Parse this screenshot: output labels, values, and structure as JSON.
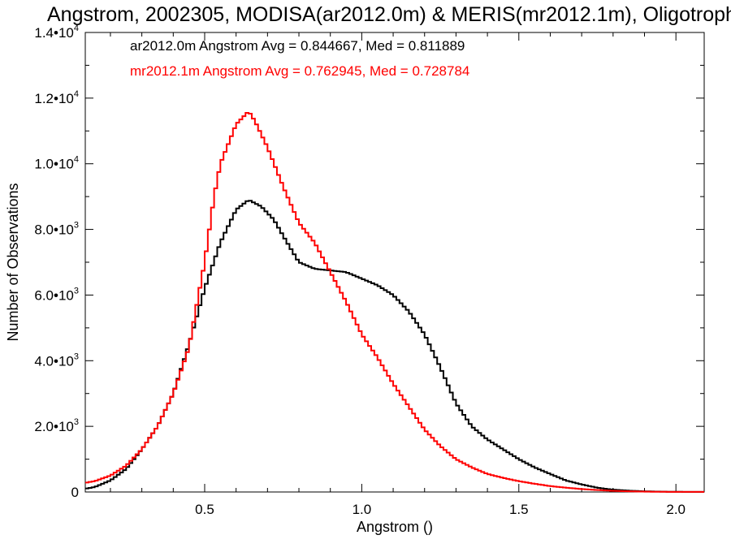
{
  "chart_data": {
    "type": "line",
    "style": "step-histogram",
    "title": "Angstrom, 2002305, MODISA(ar2012.0m) & MERIS(mr2012.1m), Oligotroph",
    "xlabel": "Angstrom ()",
    "ylabel": "Number of Observations",
    "xlim": [
      0.12,
      2.09
    ],
    "ylim": [
      0,
      14000
    ],
    "x_ticks": [
      {
        "value": 0.5,
        "label": "0.5"
      },
      {
        "value": 1.0,
        "label": "1.0"
      },
      {
        "value": 1.5,
        "label": "1.5"
      },
      {
        "value": 2.0,
        "label": "2.0"
      }
    ],
    "y_ticks": [
      {
        "value": 0,
        "mant": "0",
        "exp": ""
      },
      {
        "value": 2000,
        "mant": "2.0•10",
        "exp": "3"
      },
      {
        "value": 4000,
        "mant": "4.0•10",
        "exp": "3"
      },
      {
        "value": 6000,
        "mant": "6.0•10",
        "exp": "3"
      },
      {
        "value": 8000,
        "mant": "8.0•10",
        "exp": "3"
      },
      {
        "value": 10000,
        "mant": "1.0•10",
        "exp": "4"
      },
      {
        "value": 12000,
        "mant": "1.2•10",
        "exp": "4"
      },
      {
        "value": 14000,
        "mant": "1.4•10",
        "exp": "4"
      }
    ],
    "legend_placement": "top-left",
    "series": [
      {
        "name": "ar2012.0m",
        "color": "#000000",
        "legend": "ar2012.0m Angstrom Avg = 0.844667, Med = 0.811889",
        "points": [
          [
            0.12,
            100
          ],
          [
            0.15,
            150
          ],
          [
            0.2,
            350
          ],
          [
            0.25,
            700
          ],
          [
            0.3,
            1300
          ],
          [
            0.35,
            2000
          ],
          [
            0.4,
            3000
          ],
          [
            0.45,
            4500
          ],
          [
            0.5,
            6200
          ],
          [
            0.55,
            7600
          ],
          [
            0.6,
            8600
          ],
          [
            0.64,
            8900
          ],
          [
            0.68,
            8700
          ],
          [
            0.72,
            8300
          ],
          [
            0.75,
            7800
          ],
          [
            0.8,
            7000
          ],
          [
            0.85,
            6800
          ],
          [
            0.9,
            6750
          ],
          [
            0.95,
            6700
          ],
          [
            1.0,
            6500
          ],
          [
            1.05,
            6300
          ],
          [
            1.1,
            6000
          ],
          [
            1.15,
            5500
          ],
          [
            1.2,
            4800
          ],
          [
            1.25,
            3800
          ],
          [
            1.3,
            2700
          ],
          [
            1.35,
            2000
          ],
          [
            1.4,
            1600
          ],
          [
            1.45,
            1300
          ],
          [
            1.5,
            1000
          ],
          [
            1.55,
            750
          ],
          [
            1.6,
            550
          ],
          [
            1.65,
            350
          ],
          [
            1.7,
            230
          ],
          [
            1.75,
            130
          ],
          [
            1.8,
            70
          ],
          [
            1.85,
            40
          ],
          [
            1.9,
            20
          ],
          [
            1.95,
            10
          ],
          [
            2.0,
            5
          ],
          [
            2.09,
            3
          ]
        ]
      },
      {
        "name": "mr2012.1m",
        "color": "#ff0000",
        "legend": "mr2012.1m Angstrom Avg = 0.762945, Med = 0.728784",
        "points": [
          [
            0.12,
            280
          ],
          [
            0.15,
            330
          ],
          [
            0.2,
            500
          ],
          [
            0.25,
            800
          ],
          [
            0.3,
            1300
          ],
          [
            0.35,
            2000
          ],
          [
            0.4,
            3000
          ],
          [
            0.45,
            4400
          ],
          [
            0.5,
            7000
          ],
          [
            0.53,
            9000
          ],
          [
            0.55,
            10000
          ],
          [
            0.6,
            11200
          ],
          [
            0.64,
            11600
          ],
          [
            0.66,
            11300
          ],
          [
            0.7,
            10500
          ],
          [
            0.75,
            9300
          ],
          [
            0.8,
            8200
          ],
          [
            0.85,
            7600
          ],
          [
            0.9,
            6700
          ],
          [
            0.95,
            5800
          ],
          [
            1.0,
            4800
          ],
          [
            1.05,
            4100
          ],
          [
            1.1,
            3300
          ],
          [
            1.15,
            2600
          ],
          [
            1.2,
            1900
          ],
          [
            1.25,
            1400
          ],
          [
            1.3,
            1000
          ],
          [
            1.35,
            750
          ],
          [
            1.4,
            550
          ],
          [
            1.45,
            430
          ],
          [
            1.5,
            330
          ],
          [
            1.55,
            250
          ],
          [
            1.6,
            180
          ],
          [
            1.65,
            130
          ],
          [
            1.7,
            90
          ],
          [
            1.75,
            60
          ],
          [
            1.8,
            35
          ],
          [
            1.85,
            20
          ],
          [
            1.9,
            10
          ],
          [
            1.95,
            5
          ],
          [
            2.09,
            2
          ]
        ]
      }
    ]
  }
}
